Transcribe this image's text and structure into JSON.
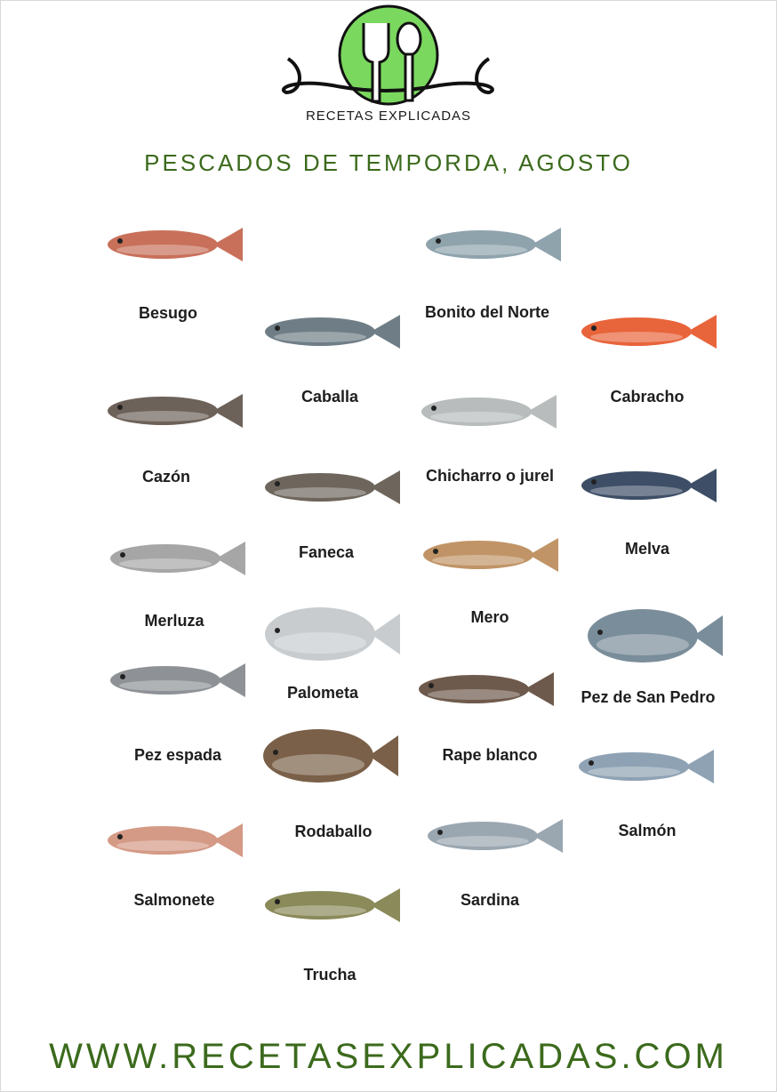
{
  "brand": "RECETAS EXPLICADAS",
  "title": "PESCADOS DE TEMPORDA, AGOSTO",
  "footer": "WWW.RECETASEXPLICADAS.COM",
  "colors": {
    "green": "#3b6a1c",
    "logo_circle": "#7bd85f"
  },
  "fish": [
    {
      "name": "Besugo",
      "color": "#c8705a"
    },
    {
      "name": "Bonito del Norte",
      "color": "#8fa3ad"
    },
    {
      "name": "Caballa",
      "color": "#6f7e86"
    },
    {
      "name": "Cabracho",
      "color": "#e8643a"
    },
    {
      "name": "Cazón",
      "color": "#6d625a"
    },
    {
      "name": "Chicharro o jurel",
      "color": "#b8bcbc"
    },
    {
      "name": "Faneca",
      "color": "#6e665c"
    },
    {
      "name": "Melva",
      "color": "#3d4e66"
    },
    {
      "name": "Merluza",
      "color": "#a6a6a6"
    },
    {
      "name": "Mero",
      "color": "#c09466"
    },
    {
      "name": "Palometa",
      "color": "#c8cccf"
    },
    {
      "name": "Pez de San Pedro",
      "color": "#7a8d9a"
    },
    {
      "name": "Pez espada",
      "color": "#8e9296"
    },
    {
      "name": "Rape blanco",
      "color": "#6e5a4c"
    },
    {
      "name": "Rodaballo",
      "color": "#7a6048"
    },
    {
      "name": "Salmón",
      "color": "#8ea2b4"
    },
    {
      "name": "Salmonete",
      "color": "#d49a86"
    },
    {
      "name": "Sardina",
      "color": "#9aa6b0"
    },
    {
      "name": "Trucha",
      "color": "#8a8a5a"
    }
  ]
}
